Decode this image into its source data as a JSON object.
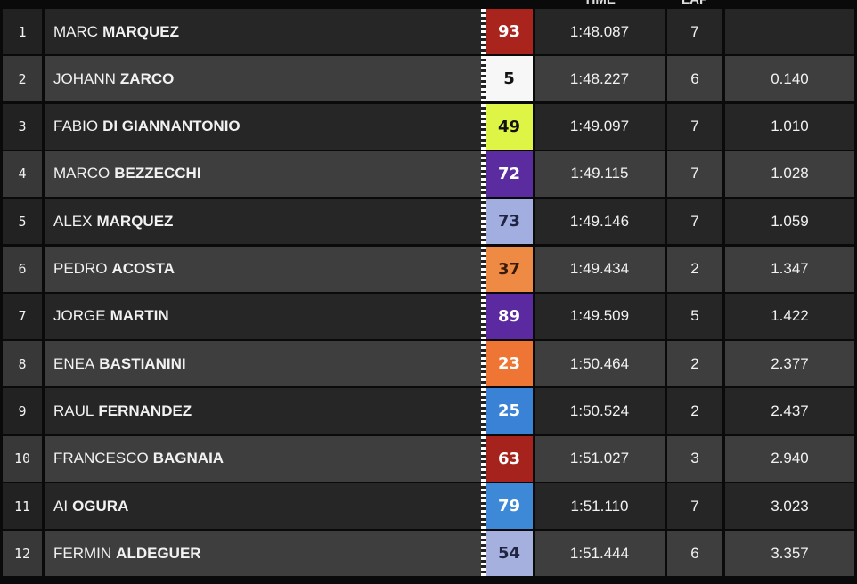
{
  "header": {
    "time": "TIME",
    "lap": "LAP"
  },
  "table": {
    "rows": [
      {
        "pos": 1,
        "first": "MARC",
        "last": "MARQUEZ",
        "number": "93",
        "time": "1:48.087",
        "lap": 7,
        "color": "#a8241d",
        "text_color": "#ffffff"
      },
      {
        "pos": 2,
        "first": "JOHANN",
        "last": "ZARCO",
        "number": "5",
        "time": "1:48.227",
        "lap": 6,
        "gap": "0.140",
        "color": "#f7f7f7",
        "text_color": "#111111"
      },
      {
        "pos": 3,
        "first": "FABIO",
        "last": "DI GIANNANTONIO",
        "number": "49",
        "time": "1:49.097",
        "lap": 7,
        "gap": "1.010",
        "color": "#def545",
        "text_color": "#111111"
      },
      {
        "pos": 4,
        "first": "MARCO",
        "last": "BEZZECCHI",
        "number": "72",
        "time": "1:49.115",
        "lap": 7,
        "gap": "1.028",
        "color": "#5a2c9f",
        "text_color": "#ffffff"
      },
      {
        "pos": 5,
        "first": "ALEX",
        "last": "MARQUEZ",
        "number": "73",
        "time": "1:49.146",
        "lap": 7,
        "gap": "1.059",
        "color": "#a3aee0",
        "text_color": "#1f2440"
      },
      {
        "pos": 6,
        "first": "PEDRO",
        "last": "ACOSTA",
        "number": "37",
        "time": "1:49.434",
        "lap": 2,
        "gap": "1.347",
        "color": "#ef8a45",
        "text_color": "#3a1a08"
      },
      {
        "pos": 7,
        "first": "JORGE",
        "last": "MARTIN",
        "number": "89",
        "time": "1:49.509",
        "lap": 5,
        "gap": "1.422",
        "color": "#5b2aa1",
        "text_color": "#ffffff"
      },
      {
        "pos": 8,
        "first": "ENEA",
        "last": "BASTIANINI",
        "number": "23",
        "time": "1:50.464",
        "lap": 2,
        "gap": "2.377",
        "color": "#ee7534",
        "text_color": "#ffffff"
      },
      {
        "pos": 9,
        "first": "RAUL",
        "last": "FERNANDEZ",
        "number": "25",
        "time": "1:50.524",
        "lap": 2,
        "gap": "2.437",
        "color": "#3a82d5",
        "text_color": "#ffffff"
      },
      {
        "pos": 10,
        "first": "FRANCESCO",
        "last": "BAGNAIA",
        "number": "63",
        "time": "1:51.027",
        "lap": 3,
        "gap": "2.940",
        "color": "#a5231c",
        "text_color": "#ffffff"
      },
      {
        "pos": 11,
        "first": "AI",
        "last": "OGURA",
        "number": "79",
        "time": "1:51.110",
        "lap": 7,
        "gap": "3.023",
        "color": "#3d89d8",
        "text_color": "#ffffff"
      },
      {
        "pos": 12,
        "first": "FERMIN",
        "last": "ALDEGUER",
        "number": "54",
        "time": "1:51.444",
        "lap": 6,
        "gap": "3.357",
        "color": "#a6b0de",
        "text_color": "#1f2440"
      }
    ]
  }
}
